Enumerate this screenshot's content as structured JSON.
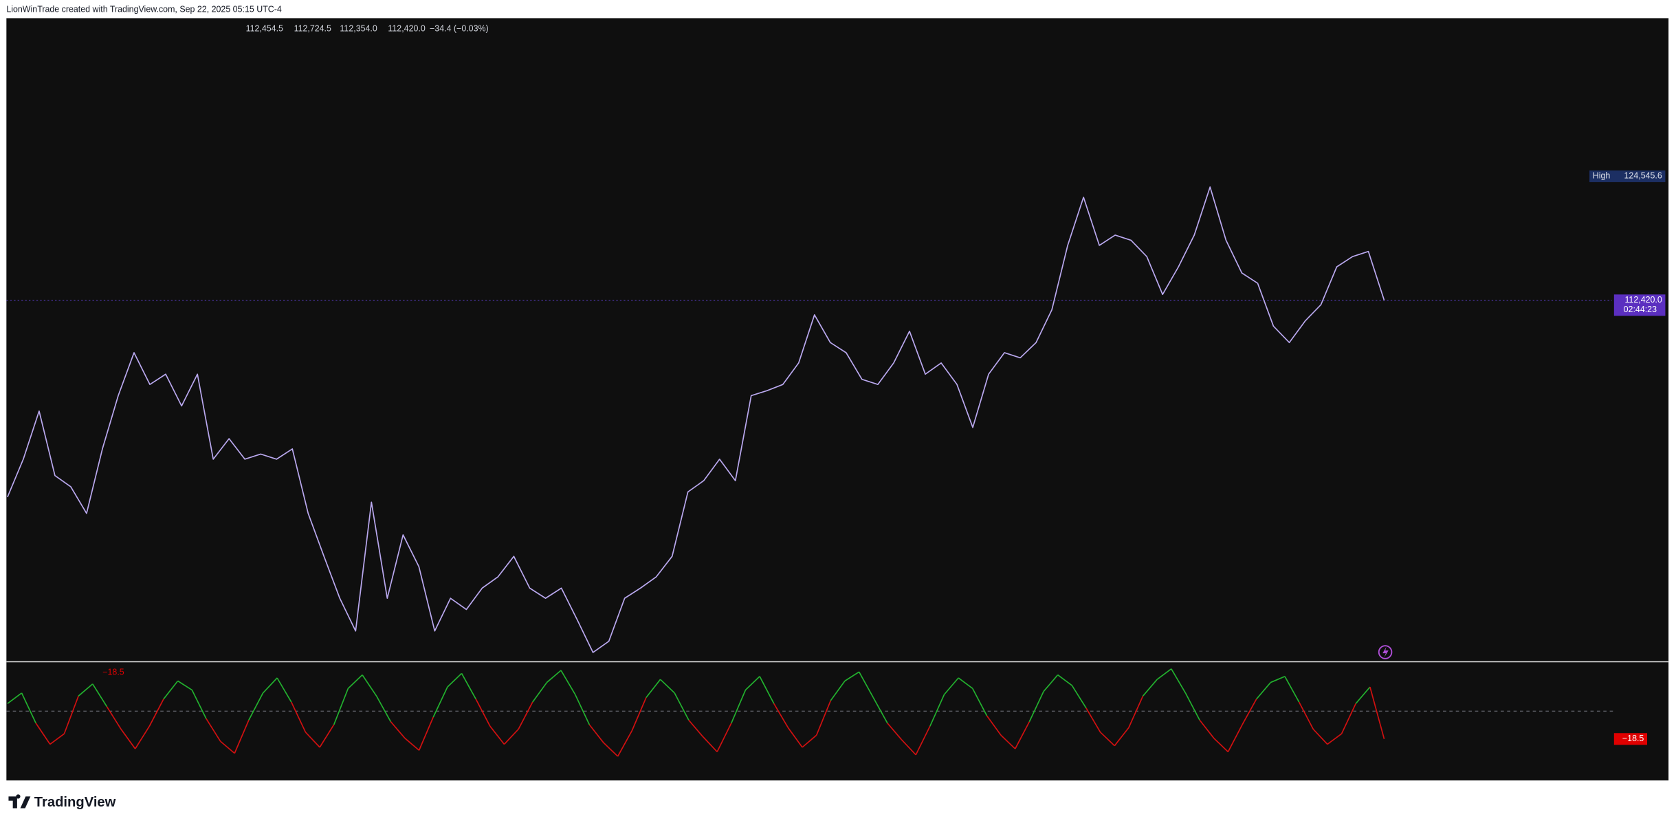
{
  "header": {
    "title": "LionWinTrade created with TradingView.com, Sep 22, 2025 05:15 UTC-4"
  },
  "legend": {
    "open": "112,454.5",
    "high": "112,724.5",
    "low": "112,354.0",
    "close": "112,420.0",
    "change": "−34.4 (−0.03%)"
  },
  "logo": "TradingView",
  "chart_data": [
    {
      "type": "line",
      "color": "#b9a8ee",
      "ylim": [
        77200,
        140000
      ],
      "values": [
        93200,
        96900,
        101600,
        95300,
        94200,
        91600,
        97900,
        103100,
        107300,
        104200,
        105200,
        102100,
        105200,
        96900,
        98900,
        96900,
        97400,
        96900,
        97900,
        91600,
        87400,
        83300,
        80100,
        92700,
        83300,
        89500,
        86400,
        80100,
        83300,
        82200,
        84300,
        85400,
        87400,
        84300,
        83300,
        84300,
        81200,
        78000,
        79100,
        83300,
        84300,
        85400,
        87400,
        93700,
        94800,
        96900,
        94800,
        103100,
        103600,
        104200,
        106300,
        111000,
        108300,
        107300,
        104700,
        104200,
        106300,
        109400,
        105200,
        106300,
        104200,
        100000,
        105200,
        107300,
        106800,
        108300,
        111500,
        117800,
        122500,
        117800,
        118800,
        118300,
        116700,
        113000,
        115700,
        118800,
        123500,
        118300,
        115100,
        114100,
        109900,
        108300,
        110400,
        112000,
        115700,
        116700,
        117200,
        112420
      ],
      "high_marker": {
        "label": "High",
        "value": 124545.6,
        "value_label": "124,545.6"
      },
      "last_price": {
        "value": 112420,
        "label": "112,420.0",
        "countdown": "02:44:23"
      }
    },
    {
      "type": "oscillator",
      "color_up": "#22b02e",
      "color_down": "#d01010",
      "ylim": [
        -46,
        32
      ],
      "values": [
        5,
        12,
        -8,
        -22,
        -15,
        10,
        18,
        3,
        -12,
        -25,
        -10,
        8,
        20,
        14,
        -5,
        -20,
        -28,
        -6,
        12,
        22,
        6,
        -14,
        -24,
        -9,
        15,
        24,
        10,
        -7,
        -18,
        -26,
        -4,
        16,
        25,
        8,
        -10,
        -22,
        -12,
        6,
        19,
        27,
        11,
        -9,
        -21,
        -30,
        -13,
        9,
        21,
        12,
        -6,
        -17,
        -27,
        -8,
        14,
        23,
        5,
        -11,
        -24,
        -16,
        7,
        20,
        26,
        9,
        -8,
        -19,
        -29,
        -10,
        11,
        22,
        15,
        -3,
        -16,
        -25,
        -7,
        13,
        24,
        17,
        2,
        -14,
        -23,
        -11,
        10,
        21,
        28,
        12,
        -6,
        -18,
        -27,
        -9,
        8,
        19,
        23,
        6,
        -12,
        -22,
        -15,
        5,
        16,
        -18.5
      ],
      "last_value": {
        "value": -18.5,
        "label": "−18.5"
      }
    }
  ]
}
